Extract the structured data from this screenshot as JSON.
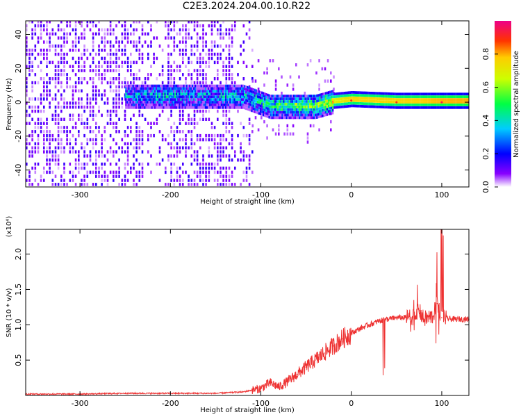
{
  "title": "C2E3.2024.204.00.10.R22",
  "chart_data": [
    {
      "type": "heatmap",
      "xlabel": "Height of straight line (km)",
      "ylabel": "Frequency (Hz)",
      "xlim": [
        -360,
        130
      ],
      "ylim": [
        -50,
        48
      ],
      "xticks": [
        -300,
        -200,
        -100,
        0,
        100
      ],
      "yticks": [
        -40,
        -20,
        0,
        20,
        40
      ],
      "xtick_labels": [
        "-300",
        "-200",
        "-100",
        "0",
        "100"
      ],
      "ytick_labels": [
        "-40",
        "-20",
        "0",
        "20",
        "40"
      ],
      "colorbar": {
        "label": "Normalized spectral amplitude",
        "range": [
          0,
          1
        ],
        "ticks": [
          0.0,
          0.2,
          0.4,
          0.6,
          0.8
        ],
        "tick_labels": [
          "0.0",
          "0.2",
          "0.4",
          "0.6",
          "0.8"
        ],
        "colormap": "rainbow"
      },
      "ridge": [
        {
          "x": -250,
          "y": 3,
          "amp": 0.3
        },
        {
          "x": -200,
          "y": 3,
          "amp": 0.35
        },
        {
          "x": -170,
          "y": 3,
          "amp": 0.3
        },
        {
          "x": -120,
          "y": 3,
          "amp": 0.35
        },
        {
          "x": -90,
          "y": -3,
          "amp": 0.45
        },
        {
          "x": -60,
          "y": -3,
          "amp": 0.6
        },
        {
          "x": -40,
          "y": -3,
          "amp": 0.55
        },
        {
          "x": -20,
          "y": 0,
          "amp": 0.8
        },
        {
          "x": 0,
          "y": 1,
          "amp": 0.9
        },
        {
          "x": 50,
          "y": 0,
          "amp": 0.9
        },
        {
          "x": 100,
          "y": 0,
          "amp": 0.95
        },
        {
          "x": 130,
          "y": 0,
          "amp": 0.95
        }
      ]
    },
    {
      "type": "line",
      "xlabel": "Height of straight line (km)",
      "ylabel": "SNR (10 * v/v)",
      "yscale_label": "(x10⁴)",
      "xlim": [
        -360,
        130
      ],
      "ylim": [
        0,
        2.35
      ],
      "xticks": [
        -300,
        -200,
        -100,
        0,
        100
      ],
      "yticks": [
        0.5,
        1.0,
        1.5,
        2.0
      ],
      "xtick_labels": [
        "-300",
        "-200",
        "-100",
        "0",
        "100"
      ],
      "ytick_labels": [
        "0.5",
        "1.0",
        "1.5",
        "2.0"
      ],
      "color": "#ee3333",
      "series": [
        {
          "x": [
            -360,
            -300,
            -250,
            -200,
            -150,
            -120,
            -100,
            -90,
            -80,
            -70,
            -60,
            -50,
            -40,
            -30,
            -20,
            -10,
            0,
            10,
            20,
            30,
            40,
            50,
            60,
            70,
            75,
            80,
            90,
            95,
            100,
            110,
            130
          ],
          "values": [
            0.02,
            0.02,
            0.03,
            0.03,
            0.03,
            0.05,
            0.1,
            0.18,
            0.12,
            0.2,
            0.3,
            0.4,
            0.5,
            0.6,
            0.7,
            0.8,
            0.88,
            0.95,
            1.0,
            1.05,
            1.08,
            1.1,
            1.1,
            1.12,
            1.2,
            1.08,
            1.12,
            1.3,
            1.1,
            1.08,
            1.08
          ]
        }
      ]
    }
  ]
}
